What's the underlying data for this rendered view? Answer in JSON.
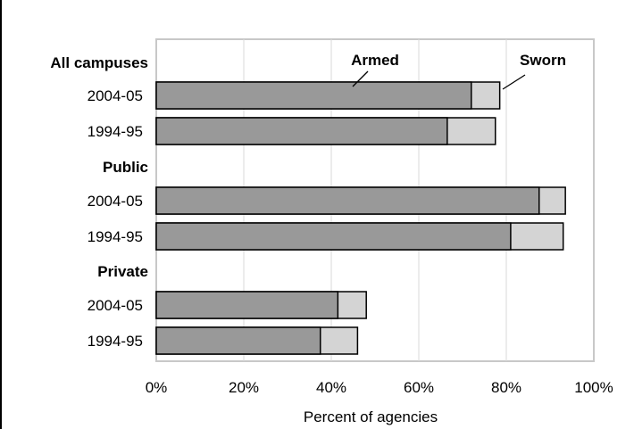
{
  "chart_data": {
    "type": "bar",
    "orientation": "horizontal",
    "stacked": true,
    "groups": [
      {
        "label": "All campuses",
        "rows": [
          {
            "label": "2004-05",
            "armed": 72,
            "sworn": 78.5
          },
          {
            "label": "1994-95",
            "armed": 66.5,
            "sworn": 77.5
          }
        ]
      },
      {
        "label": "Public",
        "rows": [
          {
            "label": "2004-05",
            "armed": 87.5,
            "sworn": 93.5
          },
          {
            "label": "1994-95",
            "armed": 81,
            "sworn": 93
          }
        ]
      },
      {
        "label": "Private",
        "rows": [
          {
            "label": "2004-05",
            "armed": 41.5,
            "sworn": 48
          },
          {
            "label": "1994-95",
            "armed": 37.5,
            "sworn": 46
          }
        ]
      }
    ],
    "series": [
      {
        "name": "Armed",
        "color": "#999999"
      },
      {
        "name": "Sworn",
        "color": "#d4d4d4"
      }
    ],
    "xlabel": "Percent of agencies",
    "xlim": [
      0,
      100
    ],
    "xticks": [
      "0%",
      "20%",
      "40%",
      "60%",
      "80%",
      "100%"
    ],
    "grid": "vertical",
    "legend": "callouts"
  }
}
